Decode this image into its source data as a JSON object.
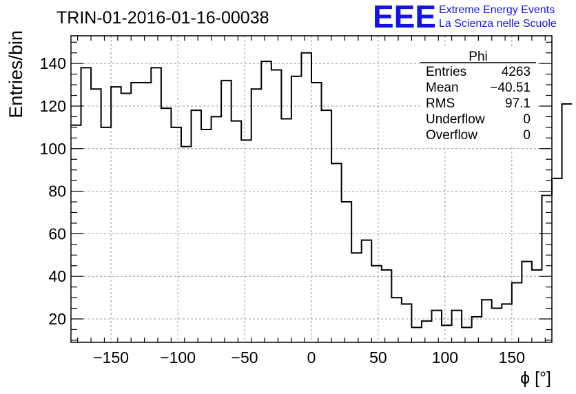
{
  "title": "TRIN-01-2016-01-16-00038",
  "logo": {
    "mark": "EEE",
    "line1": "Extreme Energy Events",
    "line2": "La Scienza nelle Scuole",
    "color": "#1414e6"
  },
  "stats_box": {
    "name": "Phi",
    "rows": [
      {
        "label": "Entries",
        "value": "4263"
      },
      {
        "label": "Mean",
        "value": "−40.51"
      },
      {
        "label": "RMS",
        "value": "97.1"
      },
      {
        "label": "Underflow",
        "value": "0"
      },
      {
        "label": "Overflow",
        "value": "0"
      }
    ]
  },
  "chart_data": {
    "type": "histogram",
    "title": "TRIN-01-2016-01-16-00038",
    "xlabel": "ϕ [°]",
    "ylabel": "Entries/bin",
    "xlim": [
      -180,
      180
    ],
    "ylim": [
      9,
      153
    ],
    "bin_width": 7.5,
    "xticks": [
      -150,
      -100,
      -50,
      0,
      50,
      100,
      150
    ],
    "xtick_labels": [
      "−150",
      "−100",
      "−50",
      "0",
      "50",
      "100",
      "150"
    ],
    "yticks": [
      20,
      40,
      60,
      80,
      100,
      120,
      140
    ],
    "grid": true,
    "line_color": "#000000",
    "values": [
      111,
      138,
      128,
      110,
      129,
      126,
      131,
      131,
      138,
      119,
      110,
      101,
      118,
      109,
      115,
      132,
      113,
      104,
      128,
      141,
      137,
      114,
      134,
      145,
      131,
      118,
      93,
      75,
      51,
      57,
      45,
      43,
      30,
      27,
      16,
      19,
      24,
      17,
      24,
      16,
      21,
      29,
      25,
      27,
      37,
      47,
      43,
      78,
      86,
      121
    ]
  }
}
